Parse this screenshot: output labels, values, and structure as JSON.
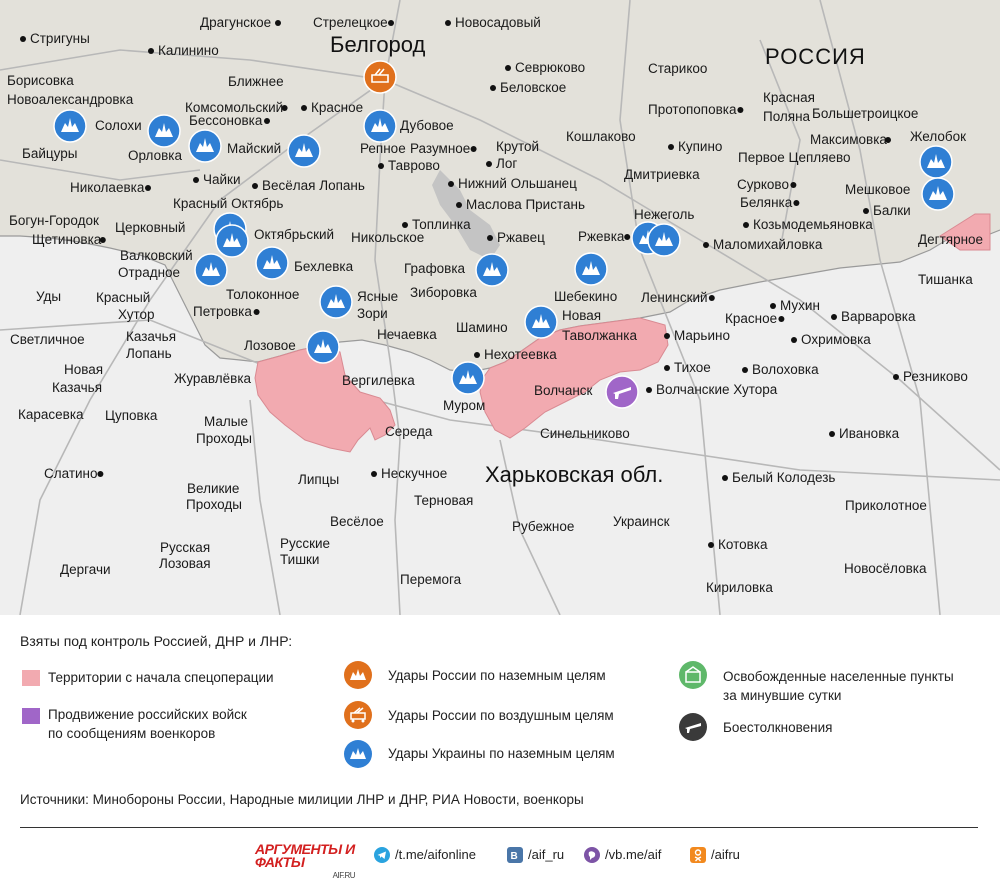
{
  "map": {
    "region_label": "Харьковская обл.",
    "country_label": "РОССИЯ",
    "capital_label": "Белгород",
    "towns": [
      {
        "name": "Драгунское",
        "dot": "r"
      },
      {
        "name": "Стрелецкое",
        "dot": "r"
      },
      {
        "name": "Новосадовый",
        "dot": "l"
      },
      {
        "name": "Стригуны",
        "dot": "l"
      },
      {
        "name": "Калинино",
        "dot": "l"
      },
      {
        "name": "Севрюково",
        "dot": "l"
      },
      {
        "name": "Борисовка",
        "dot": "n"
      },
      {
        "name": "Старикоо",
        "dot": "n"
      },
      {
        "name": "Новоалександровка",
        "dot": "n"
      },
      {
        "name": "Ближнее",
        "dot": "n"
      },
      {
        "name": "Беловское",
        "dot": "l"
      },
      {
        "name": "Протопоповка",
        "dot": "r"
      },
      {
        "name": "Красная",
        "dot": "n"
      },
      {
        "name": "Поляна",
        "dot": "n"
      },
      {
        "name": "Комсомольский",
        "dot": "r"
      },
      {
        "name": "Красное",
        "dot": "l"
      },
      {
        "name": "Большетроицкое",
        "dot": "n"
      },
      {
        "name": "Солохи",
        "dot": "n"
      },
      {
        "name": "Бессоновка",
        "dot": "r"
      },
      {
        "name": "Дубовое",
        "dot": "n"
      },
      {
        "name": "Максимовка",
        "dot": "r"
      },
      {
        "name": "Желобок",
        "dot": "n"
      },
      {
        "name": "Байцуры",
        "dot": "n"
      },
      {
        "name": "Майский",
        "dot": "n"
      },
      {
        "name": "Репное",
        "dot": "n"
      },
      {
        "name": "Разумное",
        "dot": "r"
      },
      {
        "name": "Крутой",
        "dot": "n"
      },
      {
        "name": "Кошлаково",
        "dot": "n"
      },
      {
        "name": "Купино",
        "dot": "l"
      },
      {
        "name": "Орловка",
        "dot": "n"
      },
      {
        "name": "Лог",
        "dot": "l"
      },
      {
        "name": "Первое Цепляево",
        "dot": "n"
      },
      {
        "name": "Таврово",
        "dot": "l"
      },
      {
        "name": "Чайки",
        "dot": "l"
      },
      {
        "name": "Нижний Ольшанец",
        "dot": "l"
      },
      {
        "name": "Дмитриевка",
        "dot": "n"
      },
      {
        "name": "Николаевка",
        "dot": "r"
      },
      {
        "name": "Весёлая Лопань",
        "dot": "l"
      },
      {
        "name": "Сурково",
        "dot": "r"
      },
      {
        "name": "Мешковое",
        "dot": "n"
      },
      {
        "name": "Красный Октябрь",
        "dot": "n"
      },
      {
        "name": "Маслова Пристань",
        "dot": "l"
      },
      {
        "name": "Белянка",
        "dot": "r"
      },
      {
        "name": "Балки",
        "dot": "l"
      },
      {
        "name": "Богун-Городок",
        "dot": "n"
      },
      {
        "name": "Нежеголь",
        "dot": "n"
      },
      {
        "name": "Козьмодемьяновка",
        "dot": "l"
      },
      {
        "name": "Щетиновка",
        "dot": "r"
      },
      {
        "name": "Церковный",
        "dot": "n"
      },
      {
        "name": "Топлинка",
        "dot": "l"
      },
      {
        "name": "Октябрьский",
        "dot": "n"
      },
      {
        "name": "Никольское",
        "dot": "n"
      },
      {
        "name": "Ржавец",
        "dot": "l"
      },
      {
        "name": "Ржевка",
        "dot": "r"
      },
      {
        "name": "Маломихайловка",
        "dot": "l"
      },
      {
        "name": "Дегтярное",
        "dot": "n"
      },
      {
        "name": "Валковский",
        "dot": "n"
      },
      {
        "name": "Отрадное",
        "dot": "n"
      },
      {
        "name": "Бехлевка",
        "dot": "n"
      },
      {
        "name": "Графовка",
        "dot": "n"
      },
      {
        "name": "Тишанка",
        "dot": "n"
      },
      {
        "name": "Уды",
        "dot": "n"
      },
      {
        "name": "Красный",
        "dot": "n"
      },
      {
        "name": "Толоконное",
        "dot": "n"
      },
      {
        "name": "Зиборовка",
        "dot": "n"
      },
      {
        "name": "Шебекино",
        "dot": "n"
      },
      {
        "name": "Ленинский",
        "dot": "r"
      },
      {
        "name": "Хутор",
        "dot": "n"
      },
      {
        "name": "Ясные",
        "dot": "n"
      },
      {
        "name": "Мухин",
        "dot": "l"
      },
      {
        "name": "Петровка",
        "dot": "r"
      },
      {
        "name": "Зори",
        "dot": "n"
      },
      {
        "name": "Шамино",
        "dot": "n"
      },
      {
        "name": "Новая",
        "dot": "n"
      },
      {
        "name": "Красное",
        "dot": "r"
      },
      {
        "name": "Варваровка",
        "dot": "l"
      },
      {
        "name": "Светличное",
        "dot": "n"
      },
      {
        "name": "Казачья",
        "dot": "n"
      },
      {
        "name": "Нечаевка",
        "dot": "n"
      },
      {
        "name": "Таволжанка",
        "dot": "n"
      },
      {
        "name": "Марьино",
        "dot": "l"
      },
      {
        "name": "Лопань",
        "dot": "n"
      },
      {
        "name": "Лозовое",
        "dot": "n"
      },
      {
        "name": "Нехотеевка",
        "dot": "l"
      },
      {
        "name": "Охримовка",
        "dot": "l"
      },
      {
        "name": "Новая",
        "dot": "n"
      },
      {
        "name": "Тихое",
        "dot": "l"
      },
      {
        "name": "Волоховка",
        "dot": "l"
      },
      {
        "name": "Журавлёвка",
        "dot": "n"
      },
      {
        "name": "Вергилевка",
        "dot": "n"
      },
      {
        "name": "Резниково",
        "dot": "l"
      },
      {
        "name": "Казачья",
        "dot": "n"
      },
      {
        "name": "Волчанск",
        "dot": "n"
      },
      {
        "name": "Волчанские Хутора",
        "dot": "l"
      },
      {
        "name": "Муром",
        "dot": "n"
      },
      {
        "name": "Карасевка",
        "dot": "n"
      },
      {
        "name": "Цуповка",
        "dot": "n"
      },
      {
        "name": "Малые",
        "dot": "n"
      },
      {
        "name": "Проходы",
        "dot": "n"
      },
      {
        "name": "Середа",
        "dot": "n"
      },
      {
        "name": "Синельниково",
        "dot": "n"
      },
      {
        "name": "Ивановка",
        "dot": "l"
      },
      {
        "name": "Нескучное",
        "dot": "l"
      },
      {
        "name": "Слатино",
        "dot": "r"
      },
      {
        "name": "Белый Колодезь",
        "dot": "l"
      },
      {
        "name": "Липцы",
        "dot": "n"
      },
      {
        "name": "Великие",
        "dot": "n"
      },
      {
        "name": "Проходы",
        "dot": "n"
      },
      {
        "name": "Терновая",
        "dot": "n"
      },
      {
        "name": "Приколотное",
        "dot": "n"
      },
      {
        "name": "Весёлое",
        "dot": "n"
      },
      {
        "name": "Рубежное",
        "dot": "n"
      },
      {
        "name": "Украинск",
        "dot": "n"
      },
      {
        "name": "Русские",
        "dot": "n"
      },
      {
        "name": "Тишки",
        "dot": "n"
      },
      {
        "name": "Русская",
        "dot": "n"
      },
      {
        "name": "Лозовая",
        "dot": "n"
      },
      {
        "name": "Котовка",
        "dot": "l"
      },
      {
        "name": "Новосёловка",
        "dot": "n"
      },
      {
        "name": "Дергачи",
        "dot": "n"
      },
      {
        "name": "Перемога",
        "dot": "n"
      },
      {
        "name": "Кириловка",
        "dot": "n"
      }
    ]
  },
  "legend": {
    "title": "Взяты под контроль Россией, ДНР и ЛНР:",
    "territory_label": "Территории с начала спецоперации",
    "advance_label_1": "Продвижение российских войск",
    "advance_label_2": "по сообщениям военкоров",
    "ru_ground_label": "Удары России по наземным целям",
    "ru_air_label": "Удары России по воздушным целям",
    "ua_ground_label": "Удары Украины по наземным целям",
    "liberated_label_1": "Освобожденные населенные пункты",
    "liberated_label_2": "за минувшие сутки",
    "clash_label": "Боестолкновения",
    "colors": {
      "territory": "#f2aab0",
      "advance": "#a066c8",
      "ru_strike": "#e0701c",
      "ua_strike": "#2f7fd4",
      "liberated": "#5fb86a",
      "clash": "#3a3a3a"
    }
  },
  "sources": "Источники: Минобороны России, Народные милиции ЛНР и ДНР, РИА Новости, военкоры",
  "footer": {
    "logo_main": "АРГУМЕНТЫ И ФАКТЫ",
    "logo_site": "AIF.RU",
    "telegram": "/t.me/aifonline",
    "vk": "/aif_ru",
    "viber": "/vb.me/aif",
    "ok": "/aifru"
  }
}
